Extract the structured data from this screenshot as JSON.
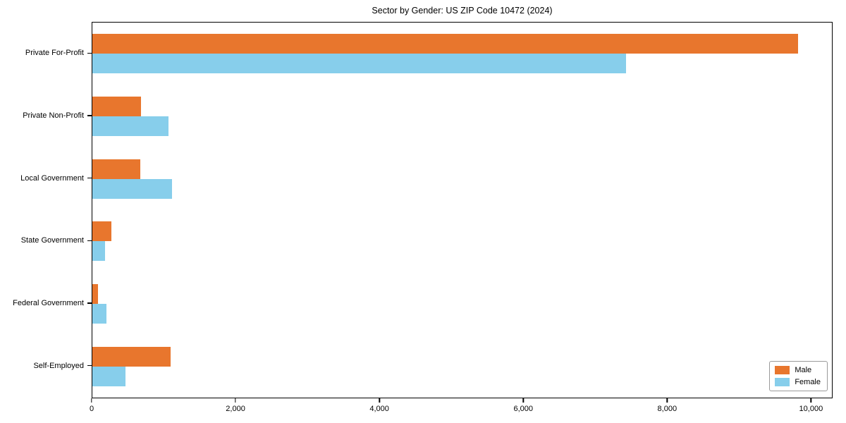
{
  "title": "Sector by Gender: US ZIP Code 10472 (2024)",
  "chart_data": {
    "type": "bar",
    "orientation": "horizontal",
    "title": "Sector by Gender: US ZIP Code 10472 (2024)",
    "categories": [
      "Private For-Profit",
      "Private Non-Profit",
      "Local Government",
      "State Government",
      "Federal Government",
      "Self-Employed"
    ],
    "series": [
      {
        "name": "Male",
        "color": "#e8762d",
        "values": [
          9830,
          680,
          670,
          270,
          80,
          1090
        ]
      },
      {
        "name": "Female",
        "color": "#87ceeb",
        "values": [
          7430,
          1060,
          1110,
          180,
          200,
          460
        ]
      }
    ],
    "xlabel": "",
    "ylabel": "",
    "xlim": [
      0,
      10300
    ],
    "xticks": [
      0,
      2000,
      4000,
      6000,
      8000,
      10000
    ],
    "xtick_labels": [
      "0",
      "2,000",
      "4,000",
      "6,000",
      "8,000",
      "10,000"
    ],
    "grid": false,
    "legend_position": "lower right",
    "colors": {
      "axis": "#000000",
      "background": "#ffffff"
    }
  }
}
